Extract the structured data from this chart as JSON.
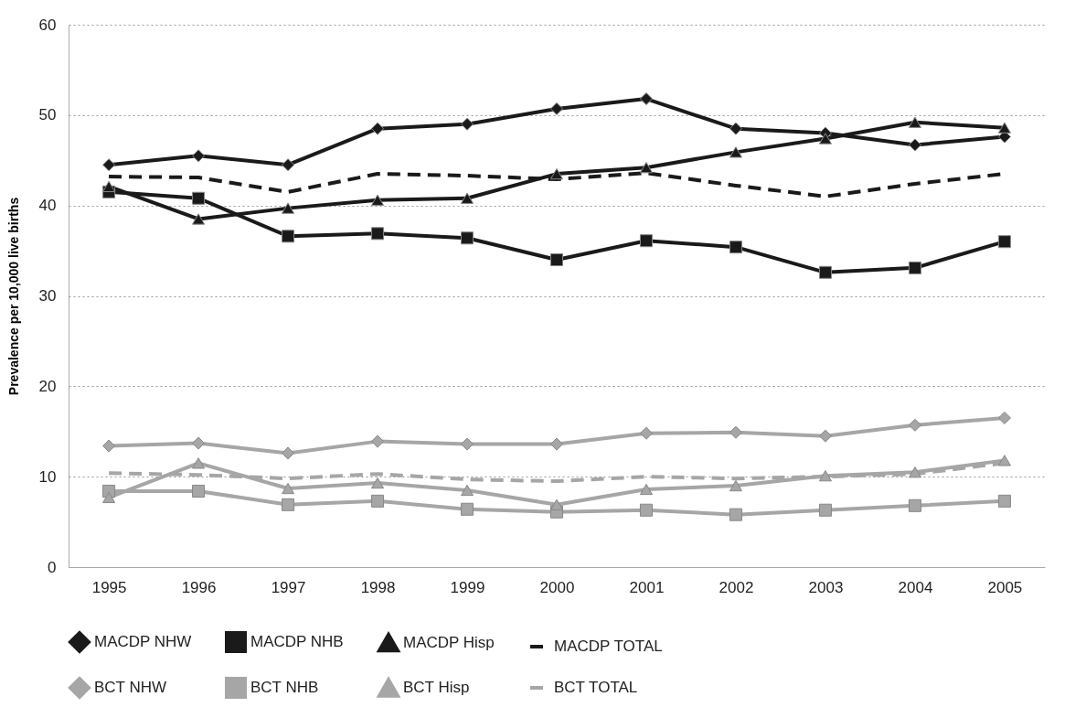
{
  "chart_data": {
    "type": "line",
    "ylabel": "Prevalence per 10,000 live births",
    "categories": [
      "1995",
      "1996",
      "1997",
      "1998",
      "1999",
      "2000",
      "2001",
      "2002",
      "2003",
      "2004",
      "2005"
    ],
    "ylim": [
      0,
      60
    ],
    "yticks": [
      0,
      10,
      20,
      30,
      40,
      50,
      60
    ],
    "grid": "y",
    "legend": "bottom",
    "series": [
      {
        "name": "MACDP NHW",
        "color": "#1a1a1a",
        "marker": "diamond",
        "line_style": "solid",
        "values": [
          44.5,
          45.5,
          44.5,
          48.5,
          49,
          50.7,
          51.8,
          48.5,
          48,
          46.7,
          47.6
        ]
      },
      {
        "name": "MACDP NHB",
        "color": "#1a1a1a",
        "marker": "square",
        "line_style": "solid",
        "values": [
          41.5,
          40.8,
          36.6,
          36.9,
          36.4,
          34,
          36.1,
          35.4,
          32.6,
          33.1,
          36
        ]
      },
      {
        "name": "MACDP Hisp",
        "color": "#1a1a1a",
        "marker": "triangle",
        "line_style": "solid",
        "values": [
          42.1,
          38.5,
          39.7,
          40.6,
          40.8,
          43.5,
          44.2,
          45.9,
          47.4,
          49.2,
          48.6
        ]
      },
      {
        "name": "MACDP TOTAL",
        "color": "#1a1a1a",
        "marker": "none",
        "line_style": "dashed",
        "values": [
          43.2,
          43.1,
          41.5,
          43.5,
          43.3,
          42.9,
          43.6,
          42.2,
          41,
          42.4,
          43.5
        ]
      },
      {
        "name": "BCT NHW",
        "color": "#a6a6a6",
        "marker": "diamond",
        "line_style": "solid",
        "values": [
          13.4,
          13.7,
          12.6,
          13.9,
          13.6,
          13.6,
          14.8,
          14.9,
          14.5,
          15.7,
          16.5
        ]
      },
      {
        "name": "BCT NHB",
        "color": "#a6a6a6",
        "marker": "square",
        "line_style": "solid",
        "values": [
          8.4,
          8.4,
          6.9,
          7.3,
          6.4,
          6.1,
          6.3,
          5.8,
          6.3,
          6.8,
          7.3
        ]
      },
      {
        "name": "BCT Hisp",
        "color": "#a6a6a6",
        "marker": "triangle",
        "line_style": "solid",
        "values": [
          7.7,
          11.5,
          8.7,
          9.3,
          8.5,
          6.9,
          8.6,
          9,
          10.1,
          10.5,
          11.8
        ]
      },
      {
        "name": "BCT TOTAL",
        "color": "#a6a6a6",
        "marker": "none",
        "line_style": "dashed",
        "values": [
          10.4,
          10.2,
          9.8,
          10.3,
          9.7,
          9.5,
          10,
          9.8,
          10,
          10.3,
          11.5
        ]
      }
    ]
  }
}
